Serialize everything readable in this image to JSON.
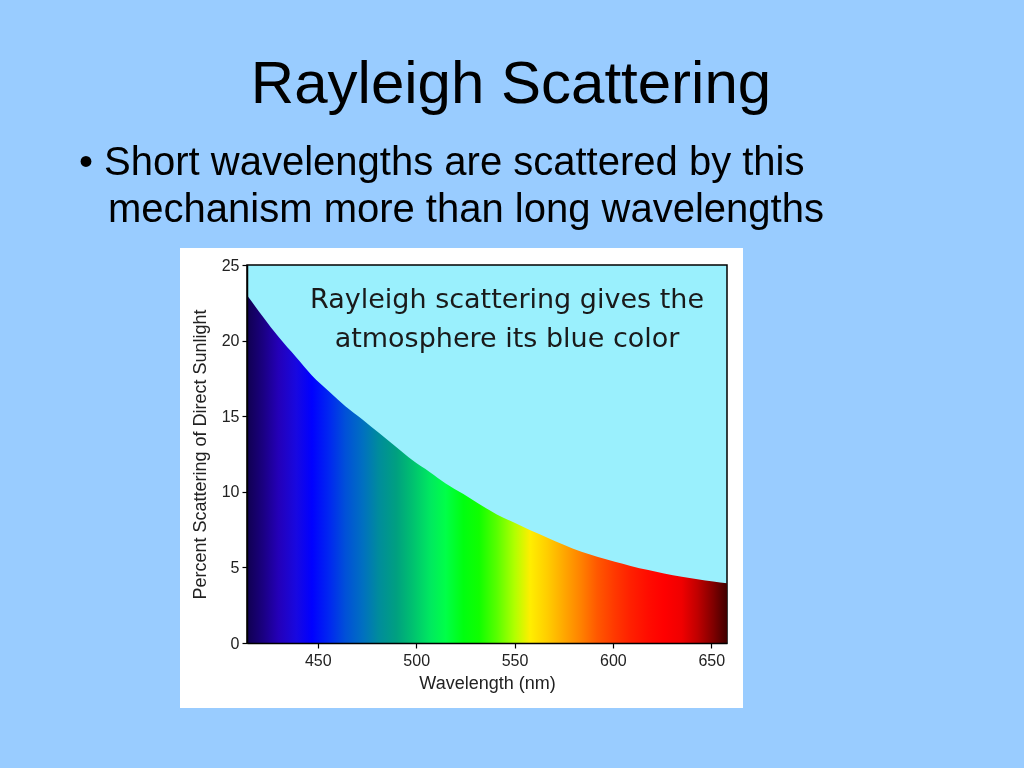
{
  "chart_data": {
    "type": "area",
    "title": "Rayleigh Scattering",
    "subtitle": "• Short wavelengths are scattered by this mechanism more than long wavelengths",
    "xlabel": "Wavelength (nm)",
    "ylabel": "Percent Scattering of Direct Sunlight",
    "annotations": [
      "Rayleigh scattering gives the atmosphere its blue color"
    ],
    "x": [
      414,
      422,
      430,
      439,
      447,
      456,
      464,
      473,
      481,
      490,
      498,
      507,
      515,
      524,
      532,
      541,
      550,
      558,
      567,
      575,
      584,
      592,
      601,
      609,
      618,
      626,
      635,
      643,
      651,
      658
    ],
    "values": [
      23.0,
      21.6,
      20.25,
      18.9,
      17.7,
      16.6,
      15.65,
      14.75,
      13.9,
      12.95,
      12.1,
      11.3,
      10.55,
      9.85,
      9.2,
      8.5,
      7.95,
      7.45,
      6.95,
      6.5,
      6.03,
      5.7,
      5.37,
      5.1,
      4.82,
      4.6,
      4.38,
      4.22,
      4.07,
      3.95
    ],
    "colors": [
      "#100050",
      "#1a0080",
      "#2400b8",
      "#1808e0",
      "#0000ff",
      "#0028f0",
      "#0050d8",
      "#0070c0",
      "#008c9c",
      "#00a080",
      "#00c070",
      "#00e860",
      "#00ff48",
      "#00ff10",
      "#10ff00",
      "#58ff00",
      "#b0ff00",
      "#ffee00",
      "#ffcc00",
      "#ffa800",
      "#ff8000",
      "#ff5800",
      "#ff3800",
      "#ff2000",
      "#ff0c00",
      "#ff0000",
      "#f00000",
      "#c00000",
      "#800000",
      "#400000"
    ],
    "xlim": [
      414,
      658
    ],
    "ylim": [
      0,
      25
    ],
    "xticks": [
      450,
      500,
      550,
      600,
      650
    ],
    "yticks": [
      0,
      5,
      10,
      15,
      20,
      25
    ]
  }
}
